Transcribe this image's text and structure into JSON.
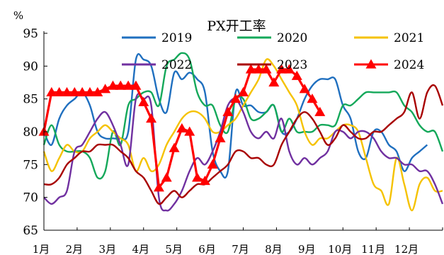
{
  "chart_data": {
    "type": "line",
    "title": "PX开工率",
    "ylabel": "%",
    "xlabel": "",
    "ylim": [
      65,
      95
    ],
    "yticks": [
      65,
      70,
      75,
      80,
      85,
      90,
      95
    ],
    "months": [
      "1月",
      "2月",
      "3月",
      "4月",
      "5月",
      "6月",
      "7月",
      "8月",
      "9月",
      "10月",
      "11月",
      "12月"
    ],
    "x_unit": "week",
    "x_max": 52,
    "grid": false,
    "legend_position": "top, inside, 3 columns",
    "series": [
      {
        "name": "2019",
        "color": "#1F6FBF",
        "marker": "none",
        "x": [
          0,
          1,
          2,
          3,
          4,
          5,
          6,
          7,
          8,
          9,
          10,
          11,
          12,
          13,
          14,
          15,
          16,
          17,
          18,
          19,
          20,
          21,
          22,
          23,
          24,
          25,
          26,
          27,
          28,
          29,
          30,
          31,
          32,
          33,
          34,
          35,
          36,
          37,
          38,
          39,
          40,
          41,
          42,
          43,
          44,
          45,
          46,
          47,
          48,
          49,
          50
        ],
        "y": [
          80,
          78,
          82,
          84,
          85,
          86,
          84,
          80,
          79,
          79,
          79,
          80,
          91,
          91,
          90,
          85,
          83,
          89,
          88,
          89,
          88,
          86,
          77,
          74,
          74,
          86,
          84,
          84,
          83,
          83,
          84,
          80,
          80,
          82,
          85,
          87,
          88,
          88,
          88,
          84,
          82,
          77,
          76,
          80,
          80,
          78,
          77,
          74,
          76,
          77,
          78
        ]
      },
      {
        "name": "2020",
        "color": "#14A85A",
        "marker": "none",
        "x": [
          0,
          1,
          2,
          3,
          4,
          5,
          6,
          7,
          8,
          9,
          10,
          11,
          12,
          13,
          14,
          15,
          16,
          17,
          18,
          19,
          20,
          21,
          22,
          23,
          24,
          25,
          26,
          27,
          28,
          29,
          30,
          31,
          32,
          33,
          34,
          35,
          36,
          37,
          38,
          39,
          40,
          41,
          42,
          43,
          44,
          45,
          46,
          47,
          48,
          49,
          50,
          51,
          52
        ],
        "y": [
          78,
          81,
          78,
          77,
          77,
          77,
          76,
          73,
          74,
          80,
          78,
          84,
          85,
          86,
          86,
          84,
          90,
          91,
          92,
          91,
          86,
          84,
          84,
          81,
          80,
          85,
          85,
          82,
          82,
          83,
          84,
          80,
          82,
          80,
          80,
          80,
          81,
          81,
          81,
          84,
          84,
          85,
          86,
          86,
          86,
          86,
          86,
          84,
          83,
          81,
          80,
          80,
          77
        ]
      },
      {
        "name": "2021",
        "color": "#F5C200",
        "marker": "none",
        "x": [
          0,
          1,
          2,
          3,
          4,
          5,
          6,
          7,
          8,
          9,
          10,
          11,
          12,
          13,
          14,
          15,
          16,
          17,
          18,
          19,
          20,
          21,
          22,
          23,
          24,
          25,
          26,
          27,
          28,
          29,
          30,
          31,
          32,
          33,
          34,
          35,
          36,
          37,
          38,
          39,
          40,
          41,
          42,
          43,
          44,
          45,
          46,
          47,
          48,
          49,
          50,
          51,
          52
        ],
        "y": [
          77,
          74,
          76,
          78,
          77,
          77,
          79,
          80,
          81,
          80,
          79,
          78,
          74,
          76,
          74,
          75,
          78,
          80,
          82,
          83,
          83,
          82,
          80,
          80,
          81,
          82,
          84,
          86,
          88,
          91,
          90,
          88,
          86,
          84,
          80,
          78,
          79,
          79,
          80,
          81,
          81,
          80,
          76,
          72,
          71,
          69,
          76,
          72,
          68,
          72,
          73,
          71,
          71
        ]
      },
      {
        "name": "2022",
        "color": "#7030A0",
        "marker": "none",
        "x": [
          0,
          1,
          2,
          3,
          4,
          5,
          6,
          7,
          8,
          9,
          10,
          11,
          12,
          13,
          14,
          15,
          16,
          17,
          18,
          19,
          20,
          21,
          22,
          23,
          24,
          25,
          26,
          27,
          28,
          29,
          30,
          31,
          32,
          33,
          34,
          35,
          36,
          37,
          38,
          39,
          40,
          41,
          42,
          43,
          44,
          45,
          46,
          47,
          48,
          49,
          50,
          51,
          52
        ],
        "y": [
          70,
          69,
          70,
          71,
          77,
          78,
          80,
          82,
          83,
          81,
          78,
          75,
          85,
          85,
          84,
          70,
          68,
          69,
          71,
          74,
          76,
          75,
          77,
          80,
          84,
          85,
          83,
          80,
          79,
          80,
          79,
          82,
          77,
          75,
          76,
          75,
          76,
          77,
          80,
          80,
          79,
          80,
          80,
          79,
          77,
          76,
          76,
          75,
          75,
          74,
          74,
          72,
          69
        ]
      },
      {
        "name": "2023",
        "color": "#A80000",
        "marker": "none",
        "x": [
          0,
          1,
          2,
          3,
          4,
          5,
          6,
          7,
          8,
          9,
          10,
          11,
          12,
          13,
          14,
          15,
          16,
          17,
          18,
          19,
          20,
          21,
          22,
          23,
          24,
          25,
          26,
          27,
          28,
          29,
          30,
          31,
          32,
          33,
          34,
          35,
          36,
          37,
          38,
          39,
          40,
          41,
          42,
          43,
          44,
          45,
          46,
          47,
          48,
          49,
          50,
          51,
          52
        ],
        "y": [
          72,
          72,
          73,
          75,
          76,
          77,
          77,
          78,
          78,
          78,
          77,
          76,
          74,
          73,
          71,
          69,
          70,
          71,
          70,
          71,
          72,
          72,
          73,
          74,
          75,
          77,
          77,
          76,
          76,
          75,
          75,
          78,
          80,
          82,
          83,
          82,
          80,
          78,
          79,
          81,
          80,
          79,
          79,
          80,
          80,
          81,
          82,
          83,
          86,
          82,
          86,
          87,
          84
        ]
      },
      {
        "name": "2024",
        "color": "#FF0000",
        "marker": "triangle",
        "x": [
          0,
          1,
          2,
          3,
          4,
          5,
          6,
          7,
          8,
          9,
          10,
          11,
          12,
          13,
          14,
          15,
          16,
          17,
          18,
          19,
          20,
          21,
          22,
          23,
          24,
          25,
          26,
          27,
          28,
          29,
          30,
          31,
          32,
          33,
          34,
          35,
          36
        ],
        "y": [
          80,
          86,
          86,
          86,
          86,
          86,
          86,
          86,
          86.5,
          87,
          87,
          87,
          87,
          84.5,
          82,
          71.5,
          73,
          77.5,
          80.5,
          80,
          73,
          72.5,
          75,
          79,
          83,
          85,
          86,
          89.5,
          89.5,
          89.5,
          87.5,
          89.5,
          89.5,
          88.5,
          86.5,
          85,
          83
        ]
      }
    ]
  }
}
